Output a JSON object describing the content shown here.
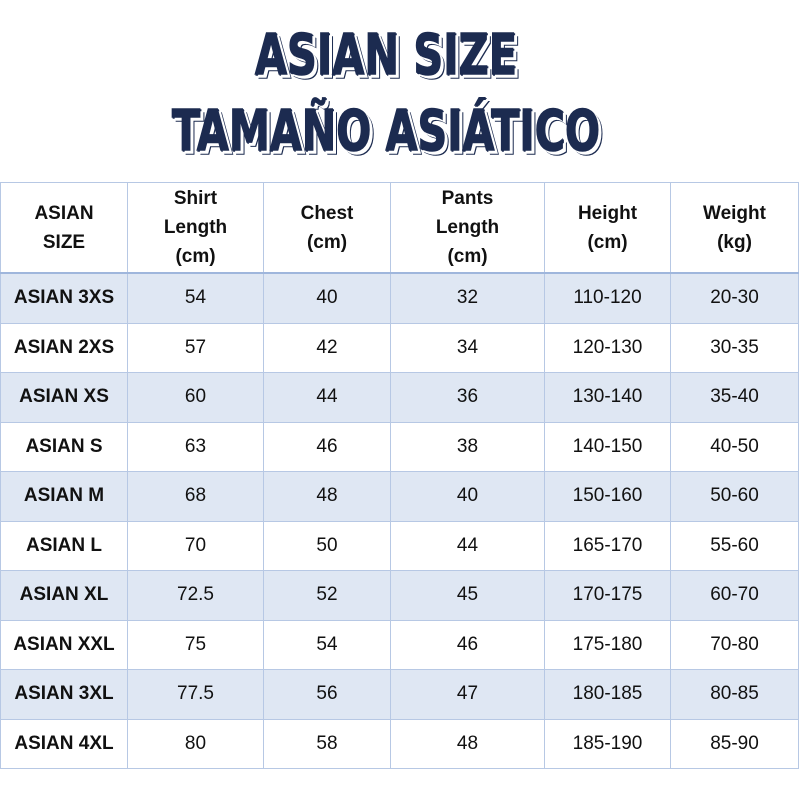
{
  "header": {
    "title": "ASIAN SIZE",
    "subtitle": "TAMAÑO ASIÁTICO"
  },
  "table": {
    "columns": [
      [
        "ASIAN",
        "SIZE"
      ],
      [
        "Shirt",
        "Length",
        "(cm)"
      ],
      [
        "Chest",
        "(cm)"
      ],
      [
        "Pants",
        "Length",
        "(cm)"
      ],
      [
        "Height",
        "(cm)"
      ],
      [
        "Weight",
        "(kg)"
      ]
    ],
    "rows": [
      [
        "ASIAN 3XS",
        54,
        40,
        32,
        "110-120",
        "20-30"
      ],
      [
        "ASIAN 2XS",
        57,
        42,
        34,
        "120-130",
        "30-35"
      ],
      [
        "ASIAN XS",
        60,
        44,
        36,
        "130-140",
        "35-40"
      ],
      [
        "ASIAN S",
        63,
        46,
        38,
        "140-150",
        "40-50"
      ],
      [
        "ASIAN M",
        68,
        48,
        40,
        "150-160",
        "50-60"
      ],
      [
        "ASIAN L",
        70,
        50,
        44,
        "165-170",
        "55-60"
      ],
      [
        "ASIAN XL",
        72.5,
        52,
        45,
        "170-175",
        "60-70"
      ],
      [
        "ASIAN XXL",
        75,
        54,
        46,
        "175-180",
        "70-80"
      ],
      [
        "ASIAN 3XL",
        77.5,
        56,
        47,
        "180-185",
        "80-85"
      ],
      [
        "ASIAN 4XL",
        80,
        58,
        48,
        "185-190",
        "85-90"
      ]
    ]
  }
}
